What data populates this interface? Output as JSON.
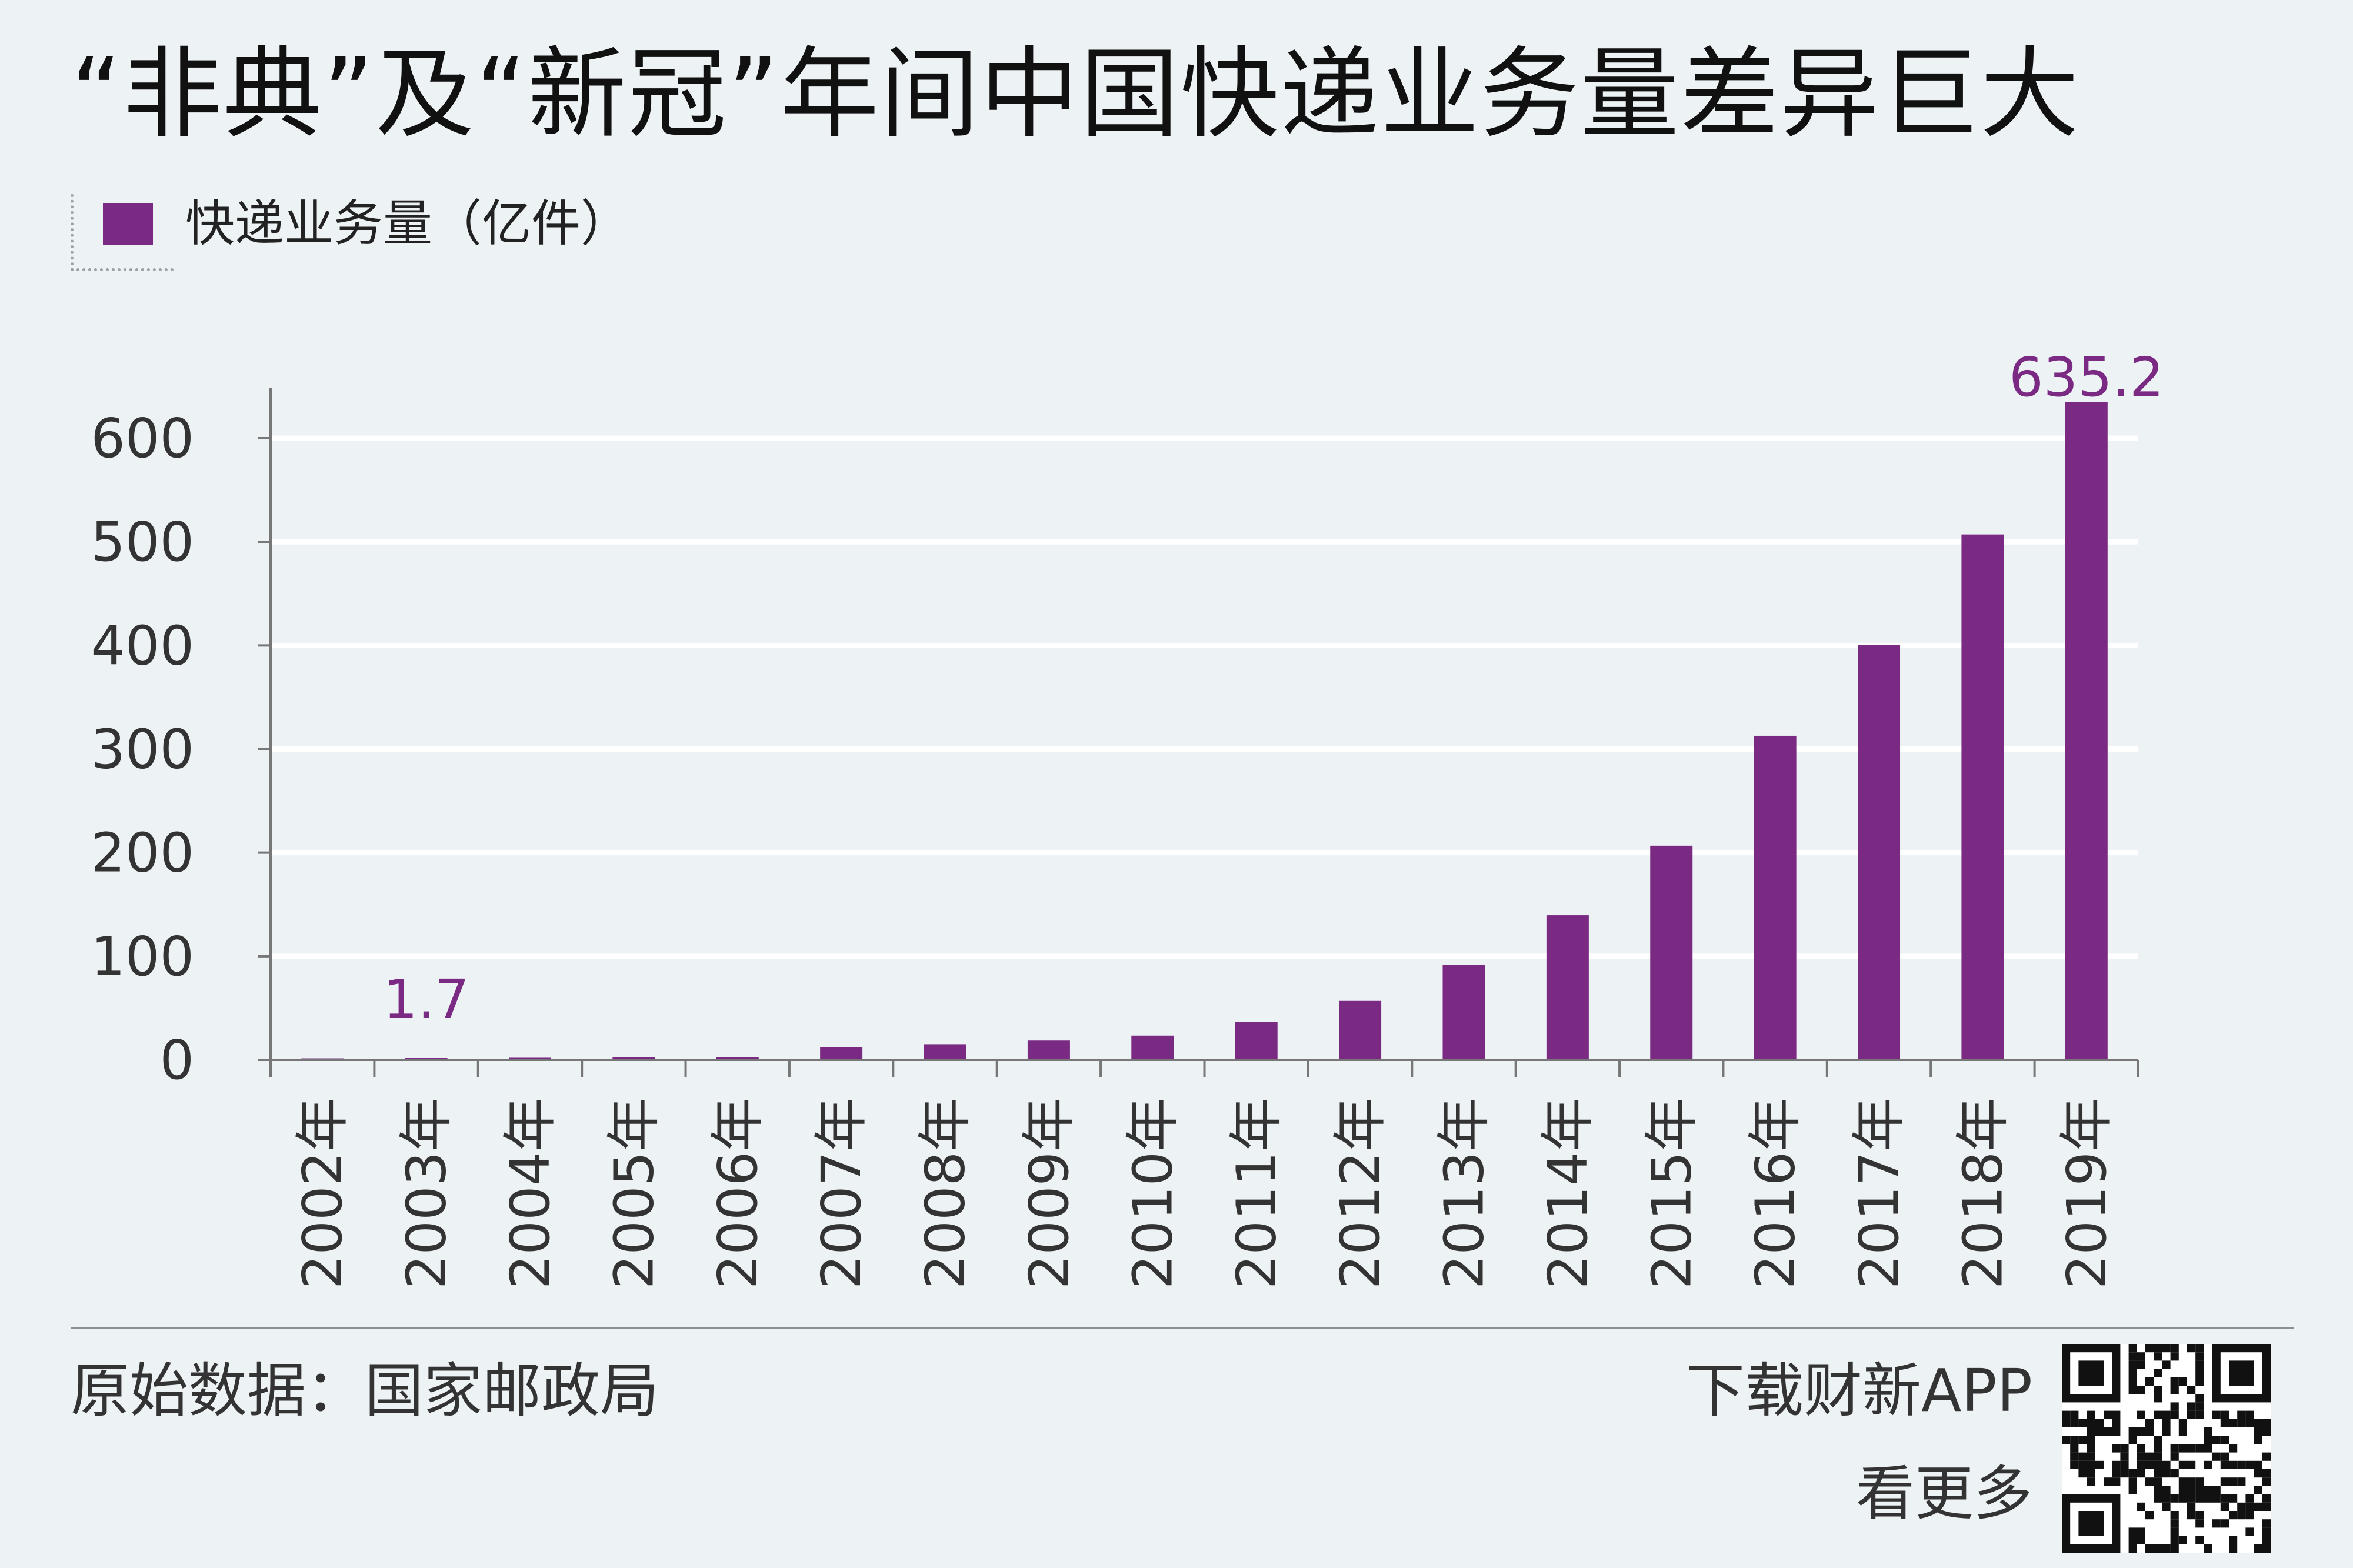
{
  "title": "“非典”及“新冠”年间中国快递业务量差异巨大",
  "legend": {
    "label": "快递业务量（亿件）",
    "color": "#7b2a84"
  },
  "footer": {
    "source": "原始数据：国家邮政局",
    "cta_line1": "下载财新APP",
    "cta_line2": "看更多"
  },
  "chart_data": {
    "type": "bar",
    "title": "“非典”及“新冠”年间中国快递业务量差异巨大",
    "xlabel": "",
    "ylabel": "",
    "ylim": [
      0,
      650
    ],
    "yticks": [
      0,
      100,
      200,
      300,
      400,
      500,
      600
    ],
    "grid": true,
    "categories": [
      "2002年",
      "2003年",
      "2004年",
      "2005年",
      "2006年",
      "2007年",
      "2008年",
      "2009年",
      "2010年",
      "2011年",
      "2012年",
      "2013年",
      "2014年",
      "2015年",
      "2016年",
      "2017年",
      "2018年",
      "2019年"
    ],
    "series": [
      {
        "name": "快递业务量（亿件）",
        "color": "#7b2a84",
        "values": [
          1.4,
          1.7,
          2.0,
          2.3,
          2.7,
          12.0,
          15.1,
          18.6,
          23.4,
          36.7,
          56.9,
          91.9,
          139.6,
          206.7,
          312.8,
          400.6,
          507.1,
          635.2
        ]
      }
    ],
    "data_labels": [
      {
        "index": 1,
        "text": "1.7"
      },
      {
        "index": 17,
        "text": "635.2"
      }
    ]
  }
}
